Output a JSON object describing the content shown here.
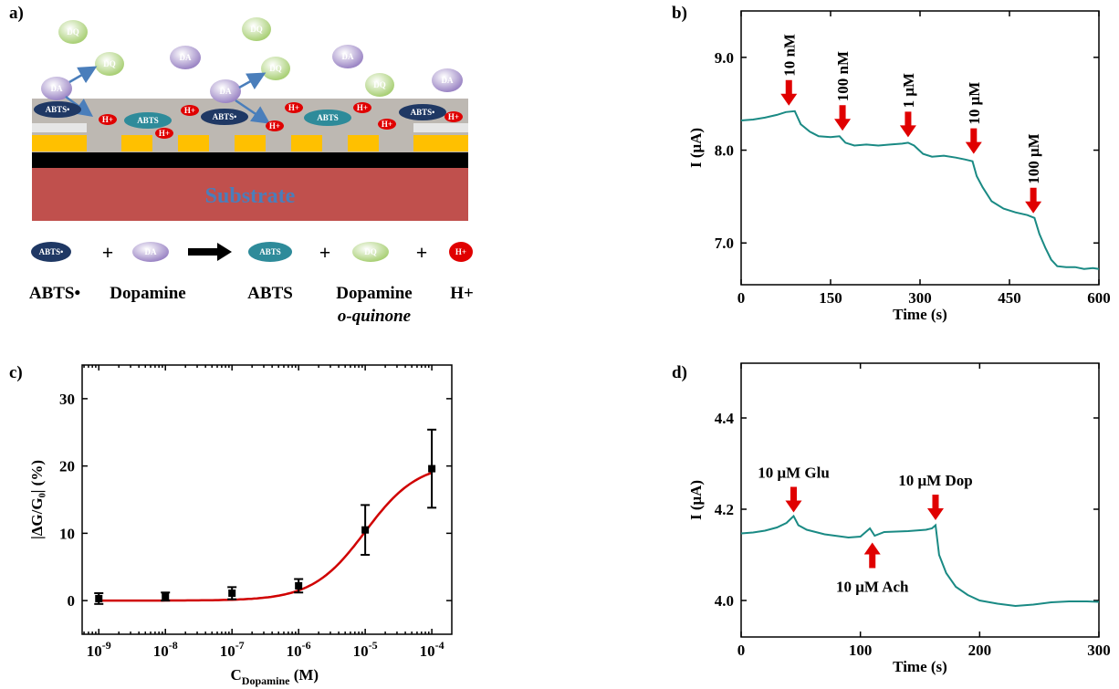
{
  "panels": {
    "a": {
      "label": "a)",
      "substrate_label": "Substrate",
      "bubbles": {
        "dq": "DQ",
        "da": "DA",
        "abts_rad": "ABTS•",
        "abts": "ABTS",
        "h": "H+"
      },
      "equation": {
        "plus": "+",
        "names": [
          "ABTS•",
          "Dopamine",
          "ABTS",
          "Dopamine",
          "o-quinone",
          "H+"
        ]
      },
      "colors": {
        "substrate": "#c0504d",
        "gold": "#ffc000",
        "gray": "#bdb8b2",
        "black": "#000000",
        "abts_rad": "#1f3864",
        "abts": "#2e8b9a",
        "h": "#e00000",
        "da": "#b7a3d6",
        "dq": "#c9e3a0",
        "arrow": "#4a7ebb"
      }
    },
    "b": {
      "label": "b)"
    },
    "c": {
      "label": "c)"
    },
    "d": {
      "label": "d)"
    }
  },
  "chart_data": [
    {
      "id": "b",
      "type": "line",
      "xlabel": "Time (s)",
      "ylabel": "I (μA)",
      "xlim": [
        0,
        600
      ],
      "ylim": [
        6.55,
        9.5
      ],
      "xticks": [
        0,
        150,
        300,
        450,
        600
      ],
      "yticks": [
        7.0,
        8.0,
        9.0
      ],
      "ytick_labels": [
        "7.0",
        "8.0",
        "9.0"
      ],
      "color": "#1a8a84",
      "series": [
        {
          "x": [
            0,
            20,
            40,
            60,
            75,
            90,
            100,
            115,
            130,
            150,
            165,
            175,
            190,
            210,
            230,
            250,
            270,
            280,
            290,
            305,
            320,
            340,
            360,
            375,
            388,
            395,
            405,
            420,
            440,
            460,
            480,
            492,
            500,
            510,
            520,
            530,
            545,
            560,
            575,
            590,
            600
          ],
          "y": [
            8.32,
            8.33,
            8.35,
            8.38,
            8.41,
            8.42,
            8.28,
            8.2,
            8.15,
            8.14,
            8.15,
            8.08,
            8.05,
            8.06,
            8.05,
            8.06,
            8.07,
            8.08,
            8.05,
            7.96,
            7.93,
            7.94,
            7.92,
            7.9,
            7.88,
            7.72,
            7.6,
            7.45,
            7.37,
            7.33,
            7.3,
            7.27,
            7.1,
            6.95,
            6.82,
            6.75,
            6.74,
            6.74,
            6.72,
            6.73,
            6.72
          ]
        }
      ],
      "annotations": [
        {
          "text": "10 nM",
          "x": 80,
          "y": 8.44
        },
        {
          "text": "100 nM",
          "x": 170,
          "y": 8.17
        },
        {
          "text": "1 μM",
          "x": 280,
          "y": 8.1
        },
        {
          "text": "10 μM",
          "x": 390,
          "y": 7.92
        },
        {
          "text": "100 μM",
          "x": 490,
          "y": 7.28
        }
      ]
    },
    {
      "id": "c",
      "type": "scatter",
      "xlabel": "C",
      "xlabel_sub": "Dopamine",
      "xlabel_unit": " (M)",
      "ylabel": "|ΔG/G₀| (%)",
      "xlim_log10": [
        -9.25,
        -3.7
      ],
      "ylim": [
        -5,
        35
      ],
      "xticks_exp": [
        -9,
        -8,
        -7,
        -6,
        -5,
        -4
      ],
      "tick_base": "10",
      "yticks": [
        0,
        10,
        20,
        30
      ],
      "points": [
        {
          "x_log10": -9,
          "y": 0.3,
          "err": 0.8
        },
        {
          "x_log10": -8,
          "y": 0.6,
          "err": 0.6
        },
        {
          "x_log10": -7,
          "y": 1.1,
          "err": 0.9
        },
        {
          "x_log10": -6,
          "y": 2.2,
          "err": 1.0
        },
        {
          "x_log10": -5,
          "y": 10.5,
          "err": 3.7
        },
        {
          "x_log10": -4,
          "y": 19.6,
          "err": 5.8
        }
      ],
      "fit": {
        "type": "sigmoid",
        "color": "#d00000",
        "bottom": 0,
        "top": 20.5,
        "x50_log10": -5.0,
        "slope": 1.1
      }
    },
    {
      "id": "d",
      "type": "line",
      "xlabel": "Time (s)",
      "ylabel": "I (μA)",
      "xlim": [
        0,
        300
      ],
      "ylim": [
        3.92,
        4.52
      ],
      "xticks": [
        0,
        100,
        200,
        300
      ],
      "yticks": [
        4.0,
        4.2,
        4.4
      ],
      "ytick_labels": [
        "4.0",
        "4.2",
        "4.4"
      ],
      "color": "#1a8a84",
      "series": [
        {
          "x": [
            0,
            10,
            20,
            30,
            38,
            44,
            48,
            55,
            70,
            90,
            100,
            108,
            112,
            120,
            140,
            155,
            160,
            163,
            166,
            172,
            180,
            190,
            200,
            215,
            230,
            245,
            260,
            275,
            290,
            300
          ],
          "y": [
            4.147,
            4.149,
            4.153,
            4.16,
            4.17,
            4.185,
            4.165,
            4.155,
            4.145,
            4.138,
            4.14,
            4.158,
            4.142,
            4.15,
            4.152,
            4.155,
            4.158,
            4.165,
            4.1,
            4.06,
            4.03,
            4.012,
            4.0,
            3.993,
            3.988,
            3.991,
            3.996,
            3.998,
            3.998,
            3.997
          ]
        }
      ],
      "annotations": [
        {
          "text": "10 μM Glu",
          "x": 44,
          "y": 4.185,
          "dir": "down"
        },
        {
          "text": "10 μM Ach",
          "x": 110,
          "y": 4.135,
          "dir": "up"
        },
        {
          "text": "10 μM Dop",
          "x": 163,
          "y": 4.168,
          "dir": "down"
        }
      ]
    }
  ]
}
